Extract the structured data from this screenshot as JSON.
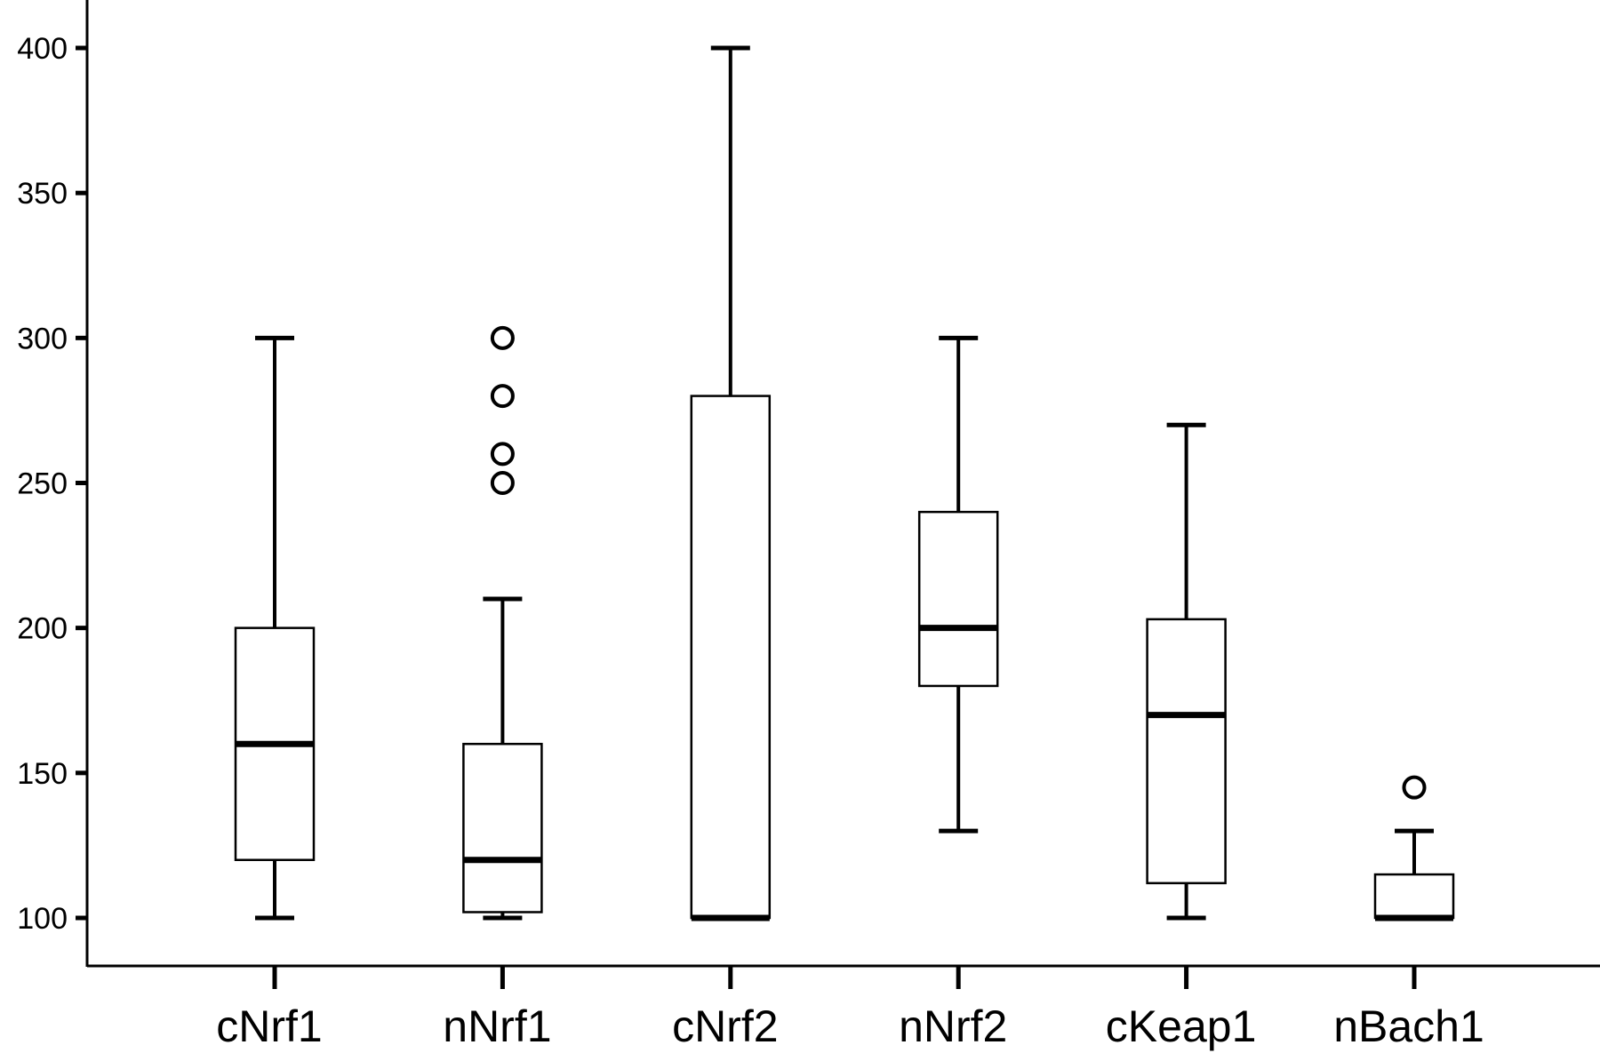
{
  "chart_data": {
    "type": "box",
    "title": "",
    "xlabel": "",
    "ylabel": "",
    "ylim": [
      84,
      418
    ],
    "y_ticks": [
      100,
      150,
      200,
      250,
      300,
      350,
      400
    ],
    "y_tick_labels": [
      "100",
      "150",
      "200",
      "250",
      "300",
      "350",
      "400"
    ],
    "categories": [
      "cNrf1",
      "nNrf1",
      "cNrf2",
      "nNrf2",
      "cKeap1",
      "nBach1"
    ],
    "boxes": [
      {
        "category": "cNrf1",
        "whisker_low": 100,
        "q1": 120,
        "median": 160,
        "q3": 200,
        "whisker_high": 300,
        "outliers": []
      },
      {
        "category": "nNrf1",
        "whisker_low": 100,
        "q1": 102,
        "median": 120,
        "q3": 160,
        "whisker_high": 210,
        "outliers": [
          250,
          260,
          280,
          300
        ]
      },
      {
        "category": "cNrf2",
        "whisker_low": 100,
        "q1": 100,
        "median": 100,
        "q3": 280,
        "whisker_high": 400,
        "outliers": []
      },
      {
        "category": "nNrf2",
        "whisker_low": 130,
        "q1": 180,
        "median": 200,
        "q3": 240,
        "whisker_high": 300,
        "outliers": []
      },
      {
        "category": "cKeap1",
        "whisker_low": 100,
        "q1": 112,
        "median": 170,
        "q3": 203,
        "whisker_high": 270,
        "outliers": []
      },
      {
        "category": "nBach1",
        "whisker_low": 100,
        "q1": 100,
        "median": 100,
        "q3": 115,
        "whisker_high": 130,
        "outliers": [
          145
        ]
      }
    ],
    "colors": {
      "stroke": "#000000",
      "box_fill": "#ffffff",
      "background": "#ffffff"
    },
    "grid": false,
    "legend": "none"
  }
}
